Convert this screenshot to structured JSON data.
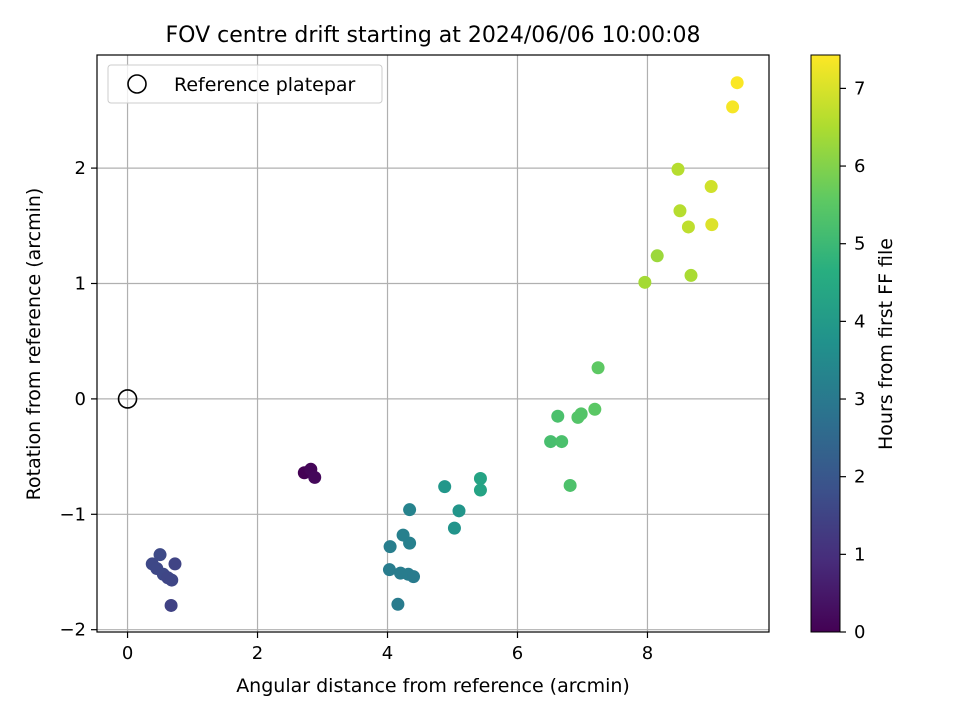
{
  "chart_data": {
    "type": "scatter",
    "title": "FOV centre drift starting at 2024/06/06 10:00:08",
    "xlabel": "Angular distance from reference (arcmin)",
    "ylabel": "Rotation from reference (arcmin)",
    "xlim": [
      -0.47,
      9.87
    ],
    "ylim": [
      -2.02,
      2.98
    ],
    "x_ticks": [
      0,
      2,
      4,
      6,
      8
    ],
    "y_ticks": [
      -2,
      -1,
      0,
      1,
      2
    ],
    "grid": true,
    "legend": {
      "position": "top-left",
      "entries": [
        "Reference platepar"
      ]
    },
    "reference_point": {
      "label": "Reference platepar",
      "x": 0,
      "y": 0
    },
    "colorbar": {
      "label": "Hours from first FF file",
      "range": [
        0,
        7.43
      ],
      "ticks": [
        0,
        1,
        2,
        3,
        4,
        5,
        6,
        7
      ],
      "colormap": "viridis"
    },
    "series": [
      {
        "points": [
          {
            "x": 2.72,
            "y": -0.64,
            "c": 0.0
          },
          {
            "x": 2.82,
            "y": -0.61,
            "c": 0.1
          },
          {
            "x": 2.88,
            "y": -0.68,
            "c": 0.15
          },
          {
            "x": 0.38,
            "y": -1.43,
            "c": 1.6
          },
          {
            "x": 0.45,
            "y": -1.47,
            "c": 1.6
          },
          {
            "x": 0.5,
            "y": -1.35,
            "c": 1.65
          },
          {
            "x": 0.55,
            "y": -1.52,
            "c": 1.6
          },
          {
            "x": 0.62,
            "y": -1.55,
            "c": 1.55
          },
          {
            "x": 0.68,
            "y": -1.57,
            "c": 1.55
          },
          {
            "x": 0.73,
            "y": -1.43,
            "c": 1.5
          },
          {
            "x": 0.67,
            "y": -1.79,
            "c": 1.45
          },
          {
            "x": 4.04,
            "y": -1.28,
            "c": 3.15
          },
          {
            "x": 4.03,
            "y": -1.48,
            "c": 3.1
          },
          {
            "x": 4.2,
            "y": -1.51,
            "c": 3.1
          },
          {
            "x": 4.32,
            "y": -1.52,
            "c": 3.1
          },
          {
            "x": 4.4,
            "y": -1.54,
            "c": 3.05
          },
          {
            "x": 4.16,
            "y": -1.78,
            "c": 3.05
          },
          {
            "x": 4.24,
            "y": -1.18,
            "c": 3.2
          },
          {
            "x": 4.34,
            "y": -1.25,
            "c": 3.2
          },
          {
            "x": 4.34,
            "y": -0.96,
            "c": 3.3
          },
          {
            "x": 4.88,
            "y": -0.76,
            "c": 3.9
          },
          {
            "x": 5.03,
            "y": -1.12,
            "c": 3.8
          },
          {
            "x": 5.1,
            "y": -0.97,
            "c": 3.85
          },
          {
            "x": 5.43,
            "y": -0.69,
            "c": 4.3
          },
          {
            "x": 5.43,
            "y": -0.79,
            "c": 4.3
          },
          {
            "x": 6.51,
            "y": -0.37,
            "c": 5.2
          },
          {
            "x": 6.62,
            "y": -0.15,
            "c": 5.25
          },
          {
            "x": 6.68,
            "y": -0.37,
            "c": 5.25
          },
          {
            "x": 6.81,
            "y": -0.75,
            "c": 5.3
          },
          {
            "x": 6.93,
            "y": -0.16,
            "c": 5.4
          },
          {
            "x": 6.98,
            "y": -0.13,
            "c": 5.4
          },
          {
            "x": 7.19,
            "y": -0.09,
            "c": 5.5
          },
          {
            "x": 7.24,
            "y": 0.27,
            "c": 5.55
          },
          {
            "x": 7.96,
            "y": 1.01,
            "c": 6.4
          },
          {
            "x": 8.15,
            "y": 1.24,
            "c": 6.3
          },
          {
            "x": 8.47,
            "y": 1.99,
            "c": 6.6
          },
          {
            "x": 8.5,
            "y": 1.63,
            "c": 6.6
          },
          {
            "x": 8.63,
            "y": 1.49,
            "c": 6.7
          },
          {
            "x": 8.67,
            "y": 1.07,
            "c": 6.45
          },
          {
            "x": 8.98,
            "y": 1.84,
            "c": 6.9
          },
          {
            "x": 8.99,
            "y": 1.51,
            "c": 7.05
          },
          {
            "x": 9.31,
            "y": 2.53,
            "c": 7.35
          },
          {
            "x": 9.38,
            "y": 2.74,
            "c": 7.4
          }
        ]
      }
    ]
  }
}
